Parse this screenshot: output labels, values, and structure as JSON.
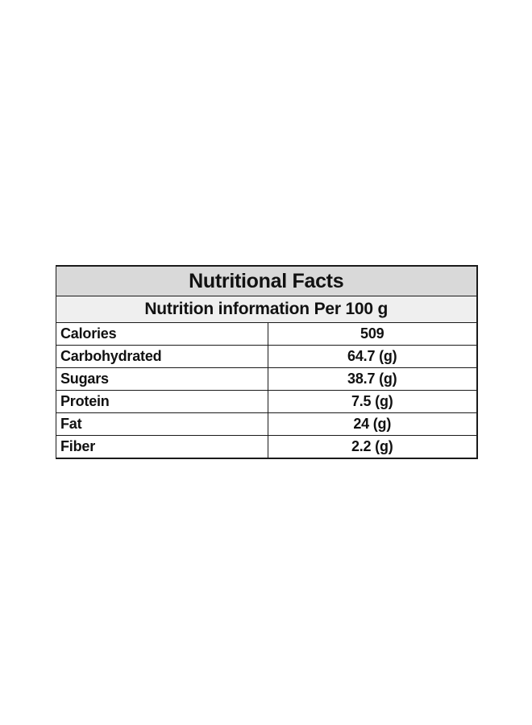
{
  "title": "Nutritional Facts",
  "subtitle": "Nutrition information Per 100 g",
  "rows": [
    {
      "nutrient": "Calories",
      "amount": "509"
    },
    {
      "nutrient": "Carbohydrated",
      "amount": "64.7 (g)"
    },
    {
      "nutrient": "Sugars",
      "amount": "38.7 (g)"
    },
    {
      "nutrient": "Protein",
      "amount": "7.5 (g)"
    },
    {
      "nutrient": "Fat",
      "amount": "24 (g)"
    },
    {
      "nutrient": "Fiber",
      "amount": "2.2 (g)"
    }
  ]
}
